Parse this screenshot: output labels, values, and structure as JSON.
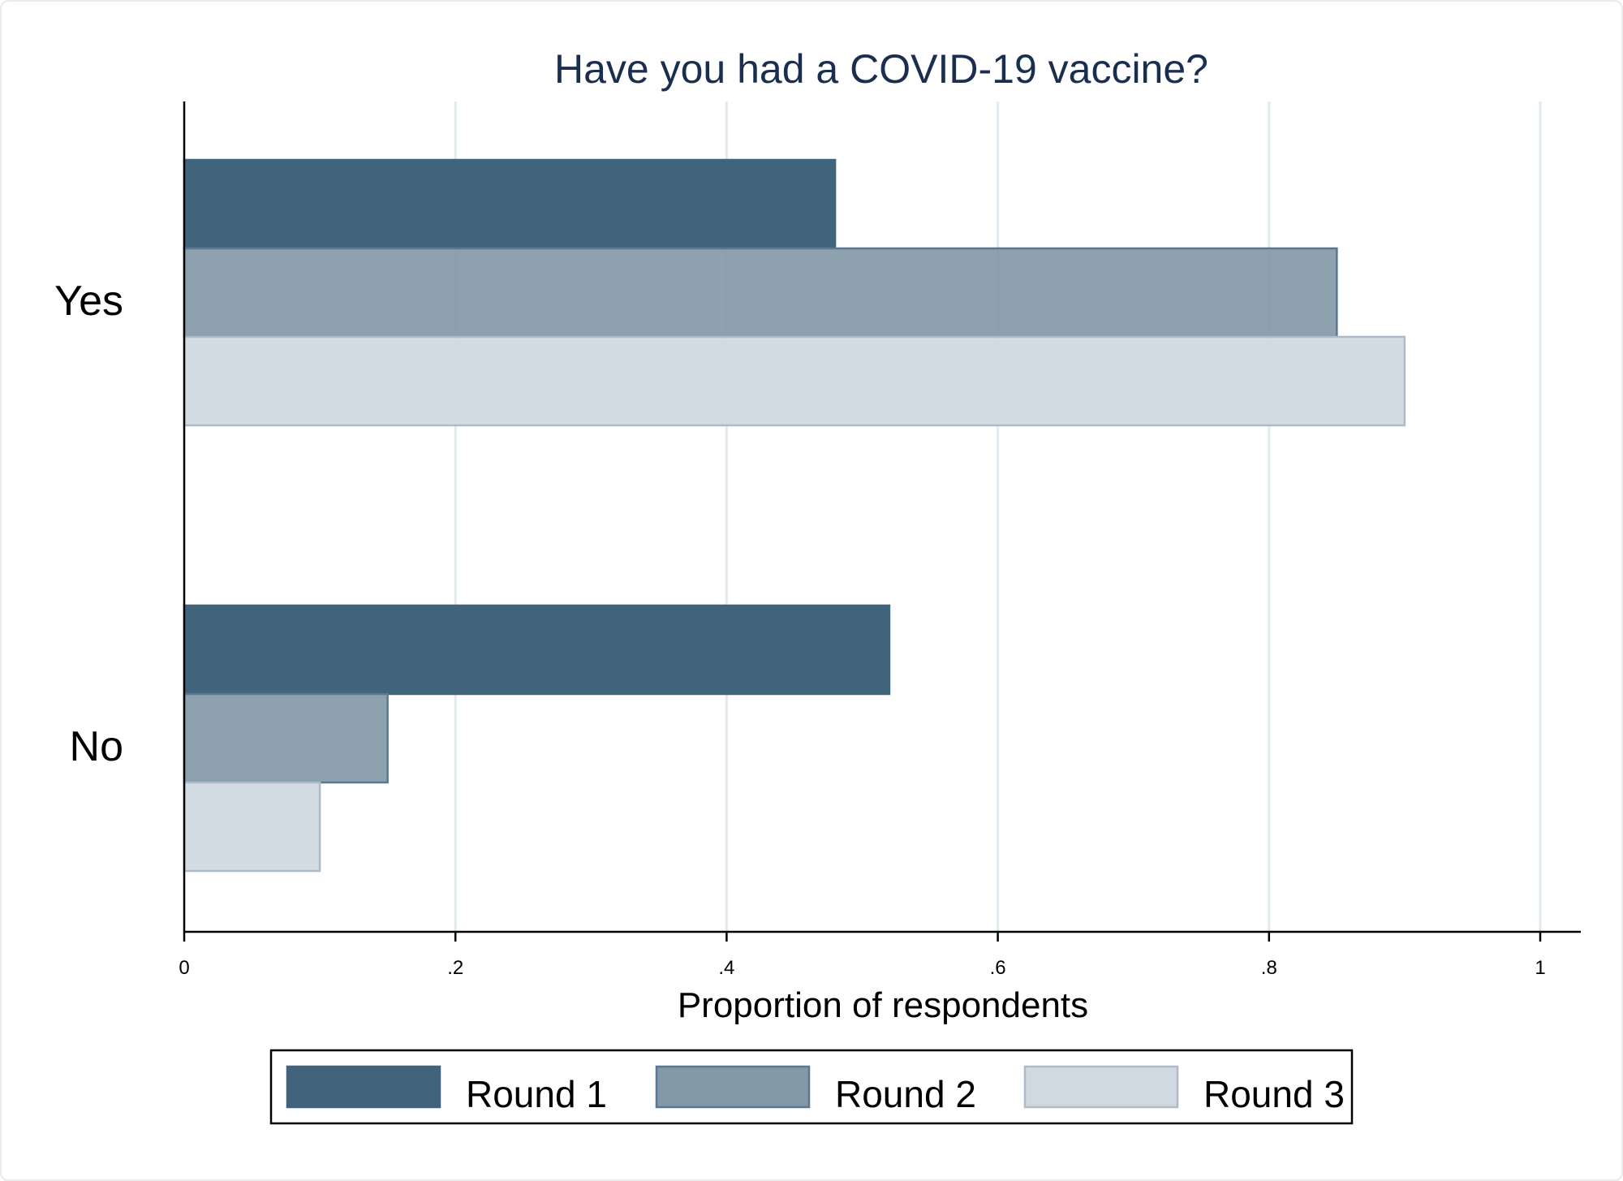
{
  "chart_data": {
    "type": "bar",
    "orientation": "horizontal",
    "title": "Have you had a COVID-19 vaccine?",
    "categories": [
      "Yes",
      "No"
    ],
    "xlabel": "Proportion of respondents",
    "ylabel": "",
    "xlim": [
      0,
      1
    ],
    "xticks": [
      "0",
      ".2",
      ".4",
      ".6",
      ".8",
      "1"
    ],
    "grid": true,
    "legend_position": "bottom",
    "series": [
      {
        "name": "Round 1",
        "values": [
          0.48,
          0.52
        ],
        "color": "#40647c"
      },
      {
        "name": "Round 2",
        "values": [
          0.85,
          0.15
        ],
        "color": "#8399a8"
      },
      {
        "name": "Round 3",
        "values": [
          0.9,
          0.1
        ],
        "color": "#d0d9e1"
      }
    ]
  }
}
